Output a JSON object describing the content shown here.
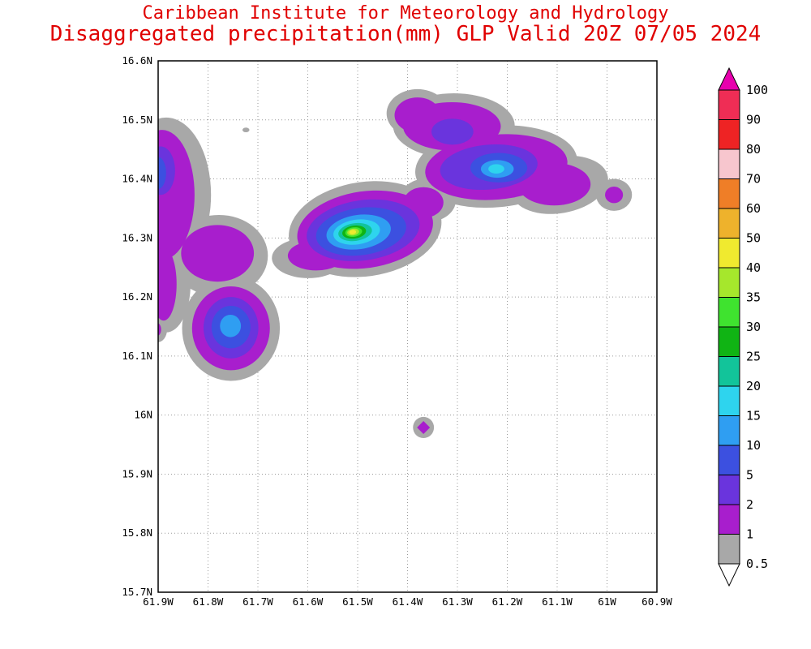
{
  "header": {
    "title_line1": "Caribbean Institute for Meteorology and Hydrology",
    "title_line2": "Disaggregated precipitation(mm) GLP Valid 20Z 07/05 2024",
    "title_color": "#e00000"
  },
  "chart_data": {
    "type": "heatmap",
    "subtype": "filled-contour-precipitation-map",
    "title": "Disaggregated precipitation(mm) GLP Valid 20Z 07/05 2024",
    "units": "mm",
    "grid": "dotted",
    "legend_position": "right",
    "lon_range": [
      61.9,
      60.9
    ],
    "lat_range": [
      15.7,
      16.6
    ],
    "x_ticks": [
      "61.9W",
      "61.8W",
      "61.7W",
      "61.6W",
      "61.5W",
      "61.4W",
      "61.3W",
      "61.2W",
      "61.1W",
      "61W",
      "60.9W"
    ],
    "y_ticks": [
      "16.6N",
      "16.5N",
      "16.4N",
      "16.3N",
      "16.2N",
      "16.1N",
      "16N",
      "15.9N",
      "15.8N",
      "15.7N"
    ],
    "colorbar": {
      "levels": [
        0.5,
        1,
        2,
        5,
        10,
        15,
        20,
        25,
        30,
        35,
        40,
        50,
        60,
        70,
        80,
        90,
        100
      ],
      "labels": [
        "0.5",
        "1",
        "2",
        "5",
        "10",
        "15",
        "20",
        "25",
        "30",
        "35",
        "40",
        "50",
        "60",
        "70",
        "80",
        "90",
        "100"
      ],
      "band_colors": [
        "#a8a8a8",
        "#a81ecd",
        "#6a34dd",
        "#3c50e0",
        "#2f9ef2",
        "#2ed4ee",
        "#12c49a",
        "#10b414",
        "#3fe32f",
        "#a6e72c",
        "#f0ea2f",
        "#eeb22c",
        "#ef7e27",
        "#f7c6ce",
        "#ee2324",
        "#ef2d55"
      ],
      "over_color": "#e800ae",
      "under_color": "#ffffff"
    },
    "features": [
      {
        "name": "west-edge-band",
        "layers": [
          {
            "value": 0.5,
            "lon": 61.884,
            "lat": 16.373,
            "rlon": 0.09,
            "rlat": 0.131
          },
          {
            "value": 1,
            "lon": 61.892,
            "lat": 16.373,
            "rlon": 0.065,
            "rlat": 0.11
          },
          {
            "value": 2,
            "lon": 61.895,
            "lat": 16.414,
            "rlon": 0.029,
            "rlat": 0.041
          },
          {
            "value": 5,
            "lon": 61.9,
            "lat": 16.41,
            "rlon": 0.016,
            "rlat": 0.027
          }
        ]
      },
      {
        "name": "southwest-cluster",
        "layers": [
          {
            "value": 0.5,
            "lon": 61.778,
            "lat": 16.27,
            "rlon": 0.098,
            "rlat": 0.069
          },
          {
            "value": 0.5,
            "lon": 61.754,
            "lat": 16.147,
            "rlon": 0.098,
            "rlat": 0.089
          },
          {
            "value": 0.5,
            "lon": 61.884,
            "lat": 16.222,
            "rlon": 0.049,
            "rlat": 0.082
          },
          {
            "value": 1,
            "lon": 61.781,
            "lat": 16.274,
            "rlon": 0.073,
            "rlat": 0.048
          },
          {
            "value": 1,
            "lon": 61.754,
            "lat": 16.147,
            "rlon": 0.078,
            "rlat": 0.071
          },
          {
            "value": 1,
            "lon": 61.889,
            "lat": 16.222,
            "rlon": 0.026,
            "rlat": 0.062
          },
          {
            "value": 2,
            "lon": 61.754,
            "lat": 16.148,
            "rlon": 0.055,
            "rlat": 0.052
          },
          {
            "value": 5,
            "lon": 61.754,
            "lat": 16.149,
            "rlon": 0.039,
            "rlat": 0.036
          },
          {
            "value": 10,
            "lon": 61.755,
            "lat": 16.151,
            "rlon": 0.021,
            "rlat": 0.019
          }
        ]
      },
      {
        "name": "central-storm",
        "layers": [
          {
            "value": 0.5,
            "lon": 61.485,
            "lat": 16.315,
            "rlon": 0.154,
            "rlat": 0.08,
            "rot": -8
          },
          {
            "value": 0.5,
            "lon": 61.599,
            "lat": 16.266,
            "rlon": 0.073,
            "rlat": 0.034
          },
          {
            "value": 0.5,
            "lon": 61.36,
            "lat": 16.364,
            "rlon": 0.057,
            "rlat": 0.037
          },
          {
            "value": 1,
            "lon": 61.485,
            "lat": 16.314,
            "rlon": 0.137,
            "rlat": 0.065,
            "rot": -8
          },
          {
            "value": 1,
            "lon": 61.583,
            "lat": 16.27,
            "rlon": 0.057,
            "rlat": 0.025
          },
          {
            "value": 1,
            "lon": 61.368,
            "lat": 16.36,
            "rlon": 0.04,
            "rlat": 0.026
          },
          {
            "value": 2,
            "lon": 61.489,
            "lat": 16.313,
            "rlon": 0.114,
            "rlat": 0.051,
            "rot": -8
          },
          {
            "value": 5,
            "lon": 61.493,
            "lat": 16.311,
            "rlon": 0.091,
            "rlat": 0.04,
            "rot": -8
          },
          {
            "value": 10,
            "lon": 61.498,
            "lat": 16.31,
            "rlon": 0.065,
            "rlat": 0.029,
            "rot": -8
          },
          {
            "value": 15,
            "lon": 61.502,
            "lat": 16.31,
            "rlon": 0.047,
            "rlat": 0.021,
            "rot": -8
          },
          {
            "value": 20,
            "lon": 61.505,
            "lat": 16.31,
            "rlon": 0.034,
            "rlat": 0.015,
            "rot": -8
          },
          {
            "value": 25,
            "lon": 61.507,
            "lat": 16.31,
            "rlon": 0.024,
            "rlat": 0.011,
            "rot": -8
          },
          {
            "value": 30,
            "lon": 61.508,
            "lat": 16.31,
            "rlon": 0.017,
            "rlat": 0.008,
            "rot": -8
          },
          {
            "value": 35,
            "lon": 61.509,
            "lat": 16.31,
            "rlon": 0.012,
            "rlat": 0.0058,
            "rot": -8
          },
          {
            "value": 40,
            "lon": 61.51,
            "lat": 16.31,
            "rlon": 0.007,
            "rlat": 0.0038,
            "rot": -8
          }
        ]
      },
      {
        "name": "northeast-complex",
        "layers": [
          {
            "value": 0.5,
            "lon": 61.307,
            "lat": 16.49,
            "rlon": 0.122,
            "rlat": 0.055
          },
          {
            "value": 0.5,
            "lon": 61.222,
            "lat": 16.421,
            "rlon": 0.163,
            "rlat": 0.069,
            "rot": -5
          },
          {
            "value": 0.5,
            "lon": 61.095,
            "lat": 16.39,
            "rlon": 0.098,
            "rlat": 0.048,
            "rot": -10
          },
          {
            "value": 0.5,
            "lon": 61.38,
            "lat": 16.511,
            "rlon": 0.062,
            "rlat": 0.041
          },
          {
            "value": 1,
            "lon": 61.311,
            "lat": 16.489,
            "rlon": 0.098,
            "rlat": 0.041
          },
          {
            "value": 1,
            "lon": 61.222,
            "lat": 16.42,
            "rlon": 0.143,
            "rlat": 0.055,
            "rot": -5
          },
          {
            "value": 1,
            "lon": 61.106,
            "lat": 16.391,
            "rlon": 0.073,
            "rlat": 0.036
          },
          {
            "value": 1,
            "lon": 61.38,
            "lat": 16.508,
            "rlon": 0.046,
            "rlat": 0.03
          },
          {
            "value": 2,
            "lon": 61.237,
            "lat": 16.42,
            "rlon": 0.098,
            "rlat": 0.038,
            "rot": -5
          },
          {
            "value": 2,
            "lon": 61.31,
            "lat": 16.48,
            "rlon": 0.042,
            "rlat": 0.022
          },
          {
            "value": 5,
            "lon": 61.217,
            "lat": 16.419,
            "rlon": 0.057,
            "rlat": 0.025
          },
          {
            "value": 10,
            "lon": 61.22,
            "lat": 16.417,
            "rlon": 0.033,
            "rlat": 0.015
          },
          {
            "value": 15,
            "lon": 61.222,
            "lat": 16.417,
            "rlon": 0.016,
            "rlat": 0.008
          }
        ]
      },
      {
        "name": "east-spot",
        "layers": [
          {
            "value": 0.5,
            "lon": 60.986,
            "lat": 16.373,
            "rlon": 0.036,
            "rlat": 0.027
          },
          {
            "value": 1,
            "lon": 60.986,
            "lat": 16.373,
            "rlon": 0.018,
            "rlat": 0.014
          }
        ]
      },
      {
        "name": "south-diamond",
        "layers": [
          {
            "value": 0.5,
            "lon": 61.368,
            "lat": 15.979,
            "rlon": 0.021,
            "rlat": 0.018
          },
          {
            "value": 1,
            "lon": 61.368,
            "lat": 15.979,
            "rlon": 0.013,
            "rlat": 0.011,
            "shape": "diamond"
          }
        ]
      },
      {
        "name": "north-speck",
        "layers": [
          {
            "value": 0.5,
            "lon": 61.724,
            "lat": 16.483,
            "rlon": 0.007,
            "rlat": 0.004
          }
        ]
      },
      {
        "name": "west-edge-notch",
        "layers": [
          {
            "value": 0.5,
            "lon": 61.902,
            "lat": 16.145,
            "rlon": 0.02,
            "rlat": 0.022
          },
          {
            "value": 1,
            "lon": 61.902,
            "lat": 16.145,
            "rlon": 0.008,
            "rlat": 0.011
          }
        ]
      }
    ]
  }
}
